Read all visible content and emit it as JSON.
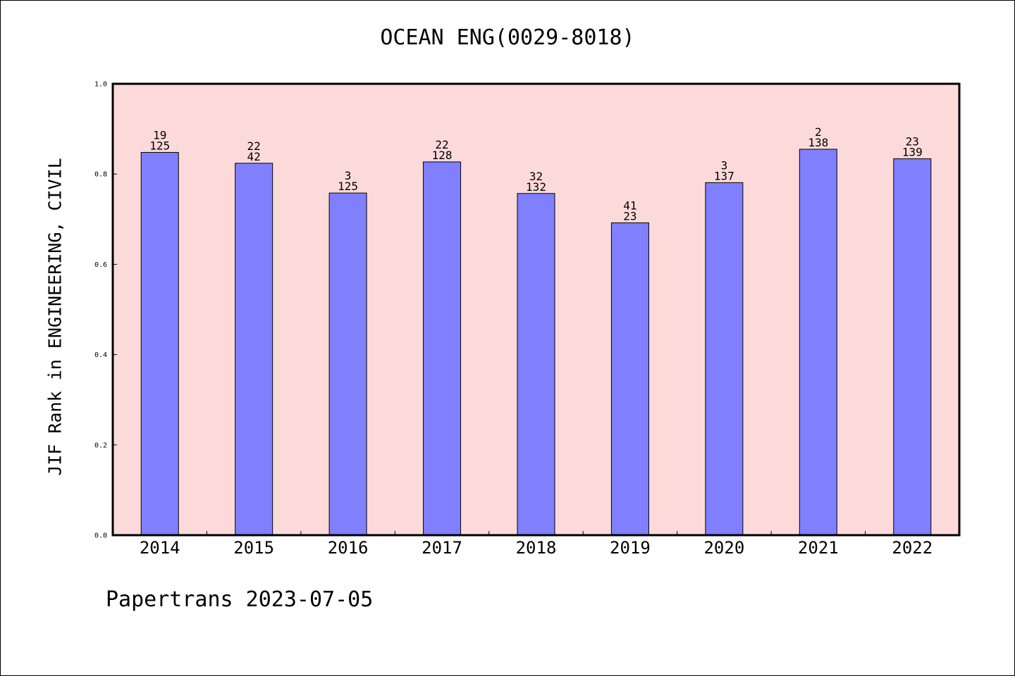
{
  "chart_data": {
    "type": "bar",
    "title": "OCEAN ENG(0029-8018)",
    "xlabel": "",
    "ylabel": "JIF Rank in ENGINEERING, CIVIL",
    "ylim": [
      0.0,
      1.0
    ],
    "yticks": [
      "0.0",
      "0.2",
      "0.4",
      "0.6",
      "0.8",
      "1.0"
    ],
    "ytick_values": [
      0.0,
      0.2,
      0.4,
      0.6,
      0.8,
      1.0
    ],
    "categories": [
      "2014",
      "2015",
      "2016",
      "2017",
      "2018",
      "2019",
      "2020",
      "2021",
      "2022"
    ],
    "values": [
      0.848,
      0.824,
      0.758,
      0.827,
      0.757,
      0.692,
      0.781,
      0.855,
      0.834
    ],
    "rank_labels": [
      "19",
      "22",
      "3",
      "22",
      "32",
      "41",
      "3",
      "2",
      "23"
    ],
    "total_labels": [
      "125",
      "42",
      "125",
      "128",
      "132",
      "23",
      "137",
      "138",
      "139"
    ],
    "grid": false,
    "colors": {
      "plot_background": "#FDDADA",
      "bar_fill": "#8080FF",
      "bar_stroke": "#000000"
    }
  },
  "footer": "Papertrans 2023-07-05"
}
